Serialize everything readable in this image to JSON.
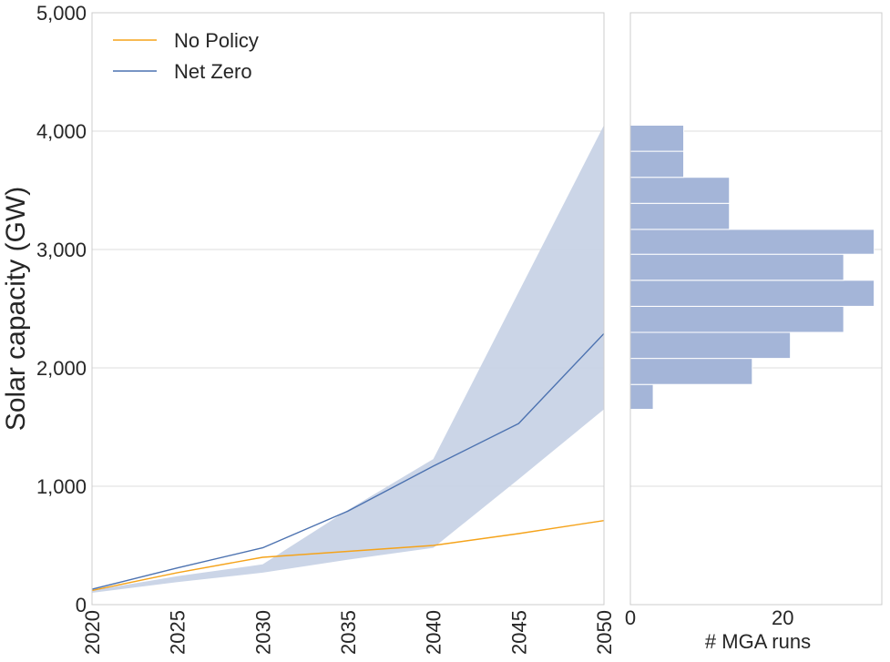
{
  "chart_data": [
    {
      "type": "line",
      "ylabel": "Solar capacity (GW)",
      "xlabel": "",
      "xlim": [
        2020,
        2050
      ],
      "ylim": [
        0,
        5000
      ],
      "x_ticks": [
        "2020",
        "2025",
        "2030",
        "2035",
        "2040",
        "2045",
        "2050"
      ],
      "y_ticks": [
        "0",
        "1,000",
        "2,000",
        "3,000",
        "4,000",
        "5,000"
      ],
      "y_tick_values": [
        0,
        1000,
        2000,
        3000,
        4000,
        5000
      ],
      "grid": "horizontal",
      "legend": "top-left",
      "series": [
        {
          "name": "No Policy",
          "color": "#f5a31a",
          "x": [
            2020,
            2025,
            2030,
            2035,
            2040,
            2045,
            2050
          ],
          "values": [
            120,
            270,
            400,
            450,
            500,
            600,
            710
          ]
        },
        {
          "name": "Net Zero",
          "color": "#4c72b0",
          "x": [
            2020,
            2025,
            2030,
            2035,
            2040,
            2045,
            2050
          ],
          "values": [
            130,
            310,
            480,
            790,
            1170,
            1530,
            2290
          ],
          "band": {
            "color": "#c8d3e6",
            "lower": [
              100,
              190,
              270,
              380,
              480,
              1060,
              1650
            ],
            "upper": [
              120,
              240,
              340,
              800,
              1230,
              2640,
              4050
            ]
          }
        }
      ]
    },
    {
      "type": "bar",
      "orientation": "horizontal",
      "xlabel": "# MGA runs",
      "x_ticks": [
        "0",
        "20"
      ],
      "x_tick_values": [
        0,
        20
      ],
      "xlim": [
        0,
        33
      ],
      "color": "#a4b5d8",
      "bins": [
        {
          "y0": 1650,
          "y1": 1860,
          "count": 3
        },
        {
          "y0": 1860,
          "y1": 2080,
          "count": 16
        },
        {
          "y0": 2080,
          "y1": 2300,
          "count": 21
        },
        {
          "y0": 2300,
          "y1": 2520,
          "count": 28
        },
        {
          "y0": 2520,
          "y1": 2740,
          "count": 32
        },
        {
          "y0": 2740,
          "y1": 2960,
          "count": 28
        },
        {
          "y0": 2960,
          "y1": 3170,
          "count": 32
        },
        {
          "y0": 3170,
          "y1": 3390,
          "count": 13
        },
        {
          "y0": 3390,
          "y1": 3610,
          "count": 13
        },
        {
          "y0": 3610,
          "y1": 3830,
          "count": 7
        },
        {
          "y0": 3830,
          "y1": 4050,
          "count": 7
        }
      ]
    }
  ]
}
